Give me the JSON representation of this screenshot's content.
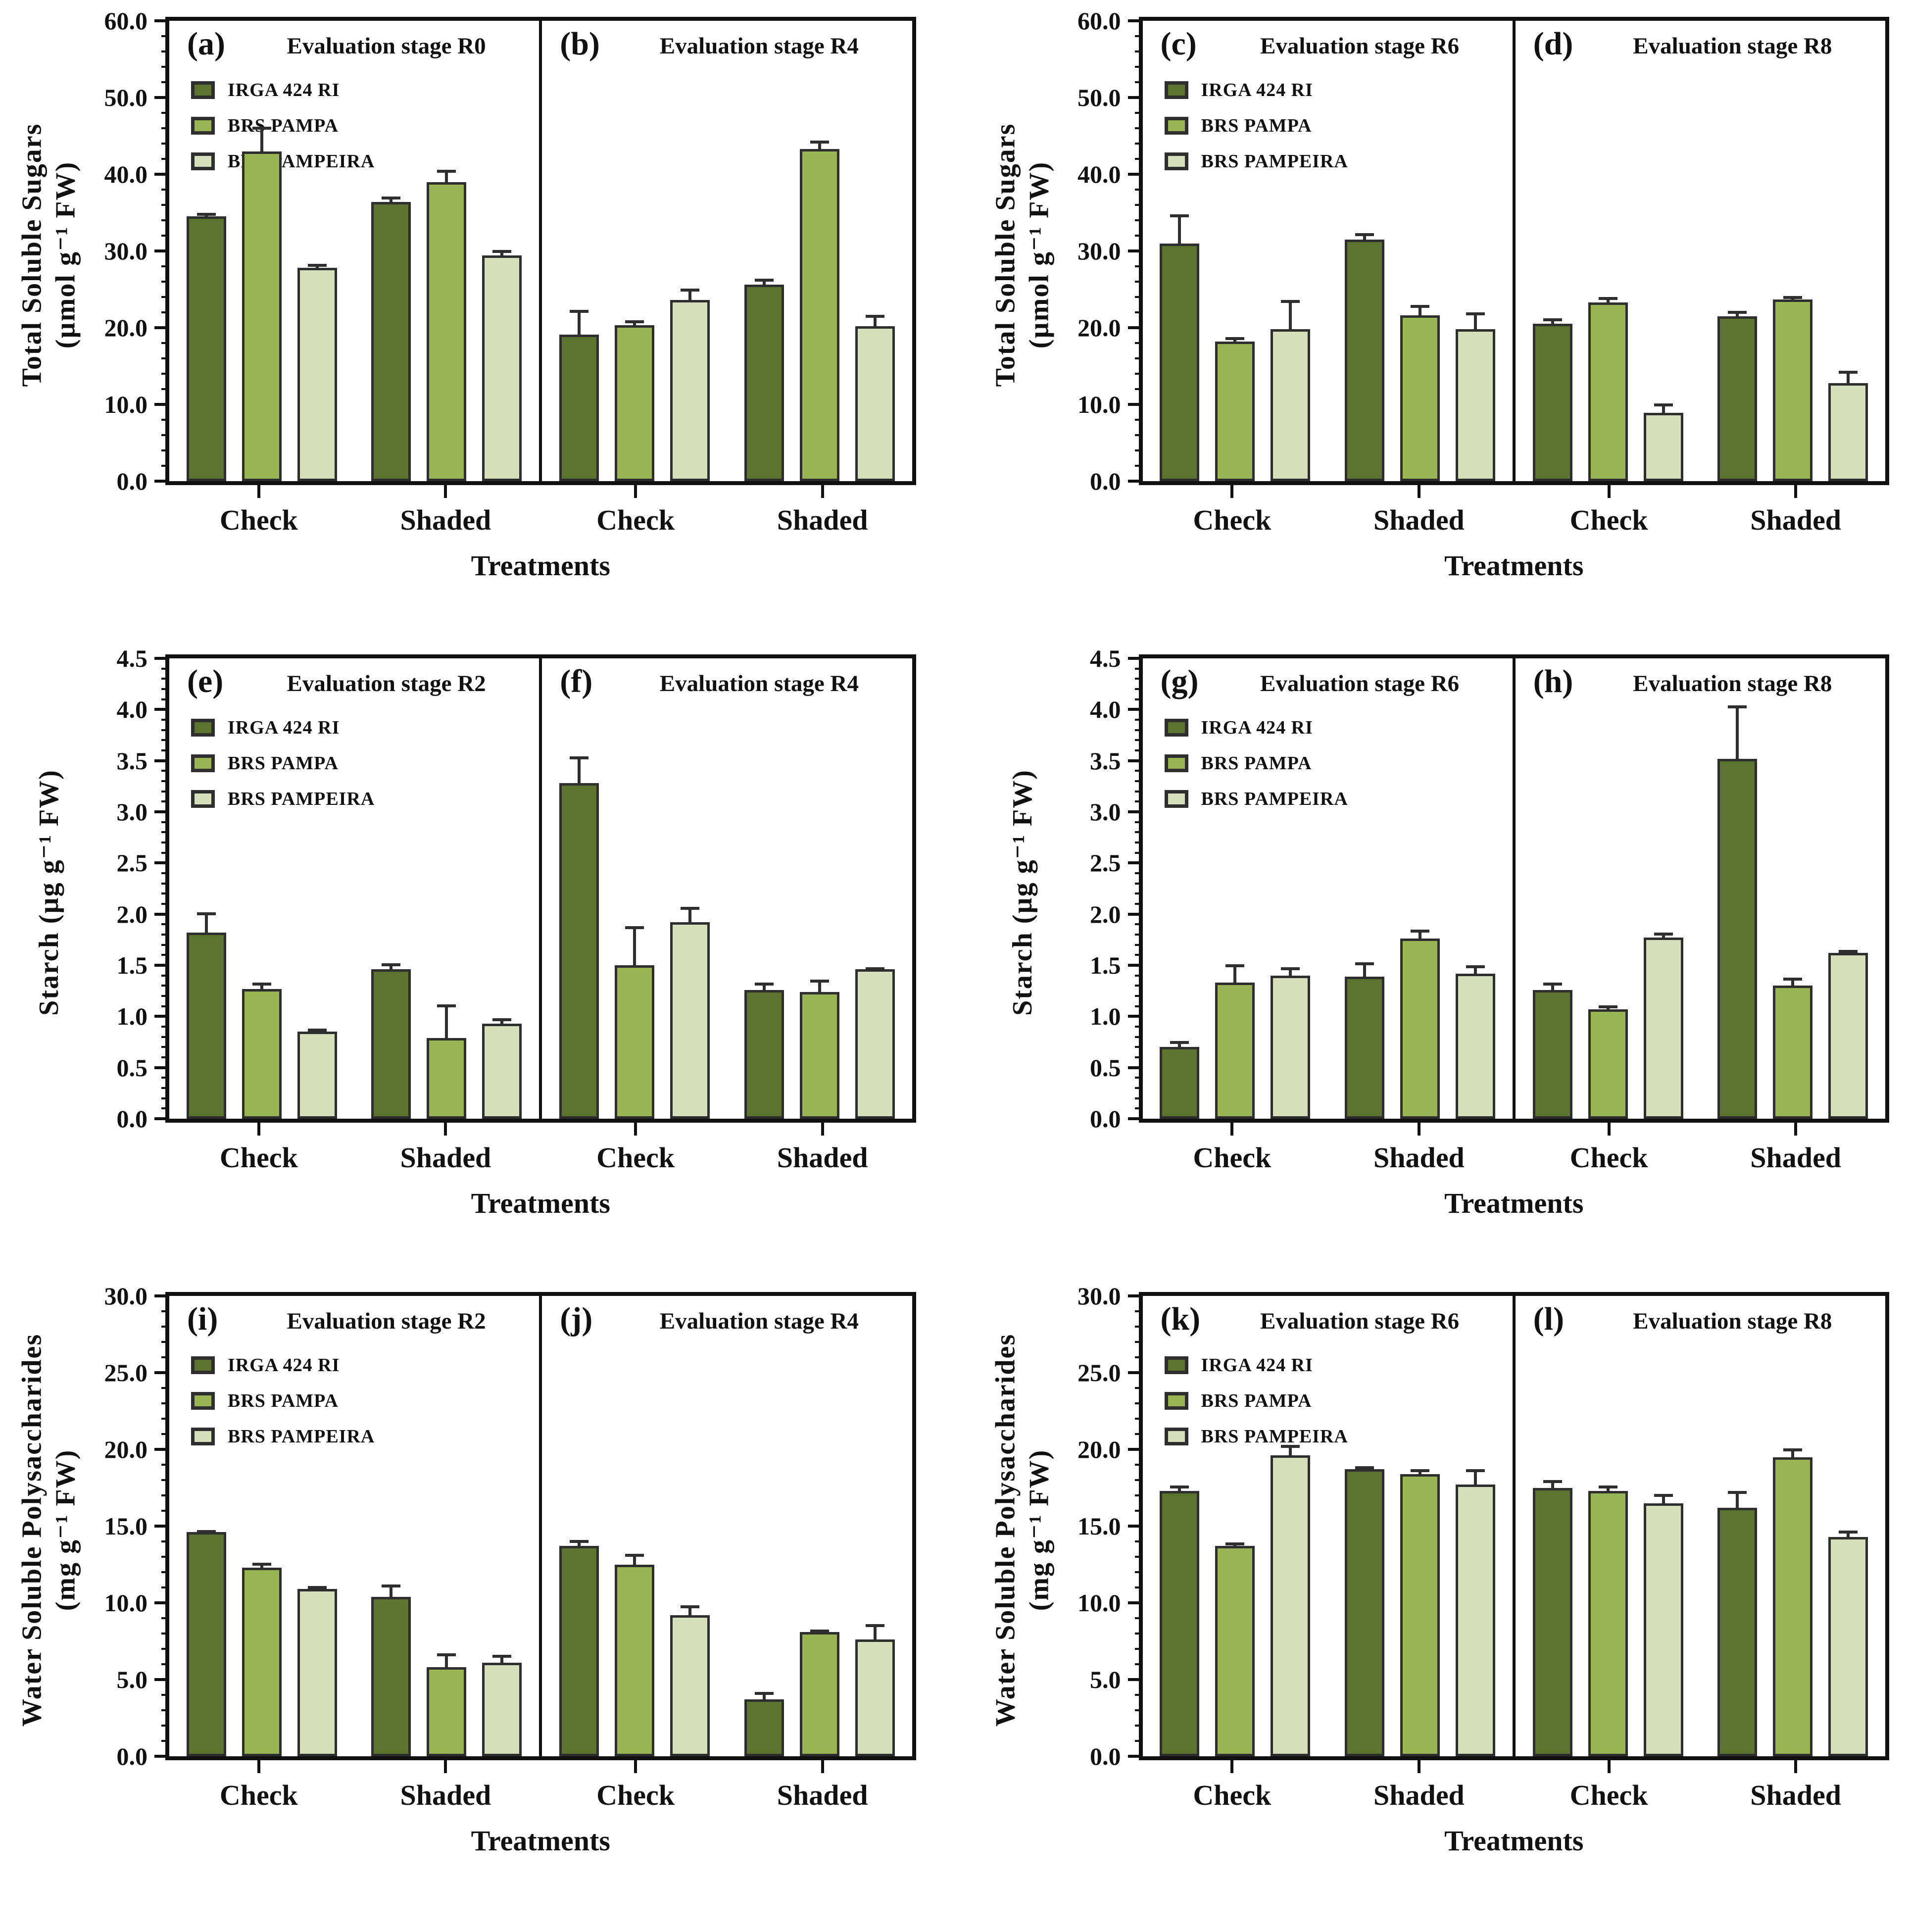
{
  "page": {
    "background": "#ffffff"
  },
  "series": [
    {
      "name": "IRGA 424 RI",
      "color": "#5d7430"
    },
    {
      "name": "BRS PAMPA",
      "color": "#9ab553"
    },
    {
      "name": "BRS PAMPEIRA",
      "color": "#d6dfba"
    }
  ],
  "style_colors": {
    "axis": "#111111",
    "bar_border": "#2e2e2e",
    "error_bar": "#2e2e2e"
  },
  "chart_data": [
    {
      "type": "bar",
      "ylabel": [
        "Total Soluble Sugars",
        "(µmol g⁻¹ FW)"
      ],
      "xlabel": "Treatments",
      "ylim": [
        0,
        60
      ],
      "ytick_step": 10,
      "minor_divisions": 5,
      "tick_decimals": 1,
      "legend_position": "top-left",
      "grid": false,
      "series_names": [
        "IRGA 424 RI",
        "BRS PAMPA",
        "BRS PAMPEIRA"
      ],
      "panels": [
        {
          "letter": "(a)",
          "title": "Evaluation stage R0",
          "legend": true,
          "groups": [
            {
              "category": "Check",
              "values": [
                34.5,
                43.0,
                27.8
              ],
              "errors": [
                0.5,
                3.2,
                0.5
              ]
            },
            {
              "category": "Shaded",
              "values": [
                36.4,
                39.0,
                29.4
              ],
              "errors": [
                0.7,
                1.6,
                0.7
              ]
            }
          ]
        },
        {
          "letter": "(b)",
          "title": "Evaluation stage R4",
          "legend": false,
          "groups": [
            {
              "category": "Check",
              "values": [
                19.1,
                20.3,
                23.6
              ],
              "errors": [
                3.2,
                0.7,
                1.5
              ]
            },
            {
              "category": "Shaded",
              "values": [
                25.6,
                43.3,
                20.2
              ],
              "errors": [
                0.8,
                1.1,
                1.5
              ]
            }
          ]
        }
      ]
    },
    {
      "type": "bar",
      "ylabel": [
        "Total Soluble Sugars",
        "(µmol g⁻¹ FW)"
      ],
      "xlabel": "Treatments",
      "ylim": [
        0,
        60
      ],
      "ytick_step": 10,
      "minor_divisions": 5,
      "tick_decimals": 1,
      "legend_position": "top-left",
      "grid": false,
      "series_names": [
        "IRGA 424 RI",
        "BRS PAMPA",
        "BRS PAMPEIRA"
      ],
      "panels": [
        {
          "letter": "(c)",
          "title": "Evaluation stage R6",
          "legend": true,
          "groups": [
            {
              "category": "Check",
              "values": [
                31.0,
                18.2,
                19.8
              ],
              "errors": [
                3.8,
                0.6,
                3.8
              ]
            },
            {
              "category": "Shaded",
              "values": [
                31.5,
                21.6,
                19.8
              ],
              "errors": [
                0.8,
                1.4,
                2.2
              ]
            }
          ]
        },
        {
          "letter": "(d)",
          "title": "Evaluation stage R8",
          "legend": false,
          "groups": [
            {
              "category": "Check",
              "values": [
                20.5,
                23.3,
                8.9
              ],
              "errors": [
                0.7,
                0.7,
                1.2
              ]
            },
            {
              "category": "Shaded",
              "values": [
                21.5,
                23.7,
                12.8
              ],
              "errors": [
                0.7,
                0.4,
                1.6
              ]
            }
          ]
        }
      ]
    },
    {
      "type": "bar",
      "ylabel": [
        "Starch (µg g⁻¹ FW)"
      ],
      "xlabel": "Treatments",
      "ylim": [
        0,
        4.5
      ],
      "ytick_step": 0.5,
      "minor_divisions": 5,
      "tick_decimals": 1,
      "legend_position": "top-left",
      "grid": false,
      "series_names": [
        "IRGA 424 RI",
        "BRS PAMPA",
        "BRS PAMPEIRA"
      ],
      "panels": [
        {
          "letter": "(e)",
          "title": "Evaluation stage R2",
          "legend": true,
          "groups": [
            {
              "category": "Check",
              "values": [
                1.82,
                1.27,
                0.85
              ],
              "errors": [
                0.2,
                0.06,
                0.03
              ]
            },
            {
              "category": "Shaded",
              "values": [
                1.46,
                0.79,
                0.93
              ],
              "errors": [
                0.06,
                0.33,
                0.05
              ]
            }
          ]
        },
        {
          "letter": "(f)",
          "title": "Evaluation stage R4",
          "legend": false,
          "groups": [
            {
              "category": "Check",
              "values": [
                3.28,
                1.5,
                1.92
              ],
              "errors": [
                0.26,
                0.38,
                0.15
              ]
            },
            {
              "category": "Shaded",
              "values": [
                1.26,
                1.24,
                1.46
              ],
              "errors": [
                0.07,
                0.12,
                0.02
              ]
            }
          ]
        }
      ]
    },
    {
      "type": "bar",
      "ylabel": [
        "Starch (µg g⁻¹ FW)"
      ],
      "xlabel": "Treatments",
      "ylim": [
        0,
        4.5
      ],
      "ytick_step": 0.5,
      "minor_divisions": 5,
      "tick_decimals": 1,
      "legend_position": "top-left",
      "grid": false,
      "series_names": [
        "IRGA 424 RI",
        "BRS PAMPA",
        "BRS PAMPEIRA"
      ],
      "panels": [
        {
          "letter": "(g)",
          "title": "Evaluation stage R6",
          "legend": true,
          "groups": [
            {
              "category": "Check",
              "values": [
                0.7,
                1.33,
                1.4
              ],
              "errors": [
                0.06,
                0.18,
                0.08
              ]
            },
            {
              "category": "Shaded",
              "values": [
                1.39,
                1.76,
                1.42
              ],
              "errors": [
                0.14,
                0.09,
                0.08
              ]
            }
          ]
        },
        {
          "letter": "(h)",
          "title": "Evaluation stage R8",
          "legend": false,
          "groups": [
            {
              "category": "Check",
              "values": [
                1.26,
                1.07,
                1.77
              ],
              "errors": [
                0.07,
                0.04,
                0.05
              ]
            },
            {
              "category": "Shaded",
              "values": [
                3.52,
                1.3,
                1.62
              ],
              "errors": [
                0.52,
                0.08,
                0.03
              ]
            }
          ]
        }
      ]
    },
    {
      "type": "bar",
      "ylabel": [
        "Water Soluble Polysaccharides",
        "(mg g⁻¹ FW)"
      ],
      "xlabel": "Treatments",
      "ylim": [
        0,
        30
      ],
      "ytick_step": 5,
      "minor_divisions": 5,
      "tick_decimals": 1,
      "legend_position": "top-left",
      "grid": false,
      "series_names": [
        "IRGA 424 RI",
        "BRS PAMPA",
        "BRS PAMPEIRA"
      ],
      "panels": [
        {
          "letter": "(i)",
          "title": "Evaluation stage R2",
          "legend": true,
          "groups": [
            {
              "category": "Check",
              "values": [
                14.6,
                12.3,
                10.9
              ],
              "errors": [
                0.15,
                0.3,
                0.2
              ]
            },
            {
              "category": "Shaded",
              "values": [
                10.4,
                5.8,
                6.1
              ],
              "errors": [
                0.8,
                0.9,
                0.5
              ]
            }
          ]
        },
        {
          "letter": "(j)",
          "title": "Evaluation stage R4",
          "legend": false,
          "groups": [
            {
              "category": "Check",
              "values": [
                13.7,
                12.5,
                9.2
              ],
              "errors": [
                0.4,
                0.7,
                0.65
              ]
            },
            {
              "category": "Shaded",
              "values": [
                3.7,
                8.1,
                7.6
              ],
              "errors": [
                0.5,
                0.15,
                1.0
              ]
            }
          ]
        }
      ]
    },
    {
      "type": "bar",
      "ylabel": [
        "Water Soluble Polysaccharides",
        "(mg g⁻¹ FW)"
      ],
      "xlabel": "Treatments",
      "ylim": [
        0,
        30
      ],
      "ytick_step": 5,
      "minor_divisions": 5,
      "tick_decimals": 1,
      "legend_position": "top-left",
      "grid": false,
      "series_names": [
        "IRGA 424 RI",
        "BRS PAMPA",
        "BRS PAMPEIRA"
      ],
      "panels": [
        {
          "letter": "(k)",
          "title": "Evaluation stage R6",
          "legend": true,
          "groups": [
            {
              "category": "Check",
              "values": [
                17.3,
                13.7,
                19.6
              ],
              "errors": [
                0.35,
                0.25,
                0.7
              ]
            },
            {
              "category": "Shaded",
              "values": [
                18.7,
                18.4,
                17.7
              ],
              "errors": [
                0.2,
                0.3,
                1.0
              ]
            }
          ]
        },
        {
          "letter": "(l)",
          "title": "Evaluation stage R8",
          "legend": false,
          "groups": [
            {
              "category": "Check",
              "values": [
                17.5,
                17.3,
                16.5
              ],
              "errors": [
                0.5,
                0.35,
                0.6
              ]
            },
            {
              "category": "Shaded",
              "values": [
                16.2,
                19.5,
                14.3
              ],
              "errors": [
                1.1,
                0.55,
                0.4
              ]
            }
          ]
        }
      ]
    }
  ]
}
